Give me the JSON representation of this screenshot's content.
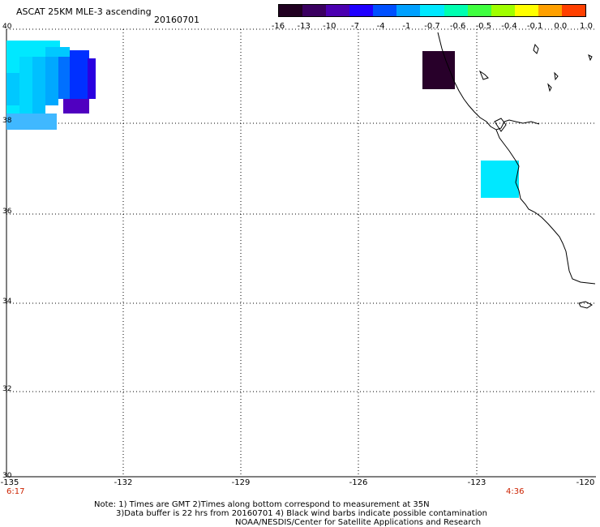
{
  "header": {
    "title": "ASCAT 25KM MLE-3 ascending",
    "date": "20160701"
  },
  "colorbar": {
    "ticks": [
      "-16",
      "-13",
      "-10",
      "-7",
      "-4",
      "-1",
      "-0.7",
      "-0.6",
      "-0.5",
      "-0.4",
      "-0.1",
      "0.0",
      "1.0"
    ],
    "colors": [
      "#200020",
      "#3a0060",
      "#4b00b0",
      "#1f00ff",
      "#0050ff",
      "#00a0ff",
      "#00e8ff",
      "#00ffb0",
      "#40ff40",
      "#a0ff00",
      "#ffff00",
      "#ffa000",
      "#ff4000"
    ]
  },
  "axes": {
    "lat_labels": [
      "40",
      "38",
      "36",
      "34",
      "32",
      "30"
    ],
    "lon_labels": [
      "-135",
      "-132",
      "-129",
      "-126",
      "-123",
      "-120"
    ]
  },
  "times": {
    "left": "6:17",
    "right": "4:36"
  },
  "notes": {
    "line1": "Note: 1) Times are GMT 2)Times along bottom correspond to measurement at 35N",
    "line2": "3)Data buffer is 22 hrs from 20160701 4) Black wind barbs indicate possible contamination",
    "line3": "NOAA/NESDIS/Center for Satellite Applications and Research"
  }
}
